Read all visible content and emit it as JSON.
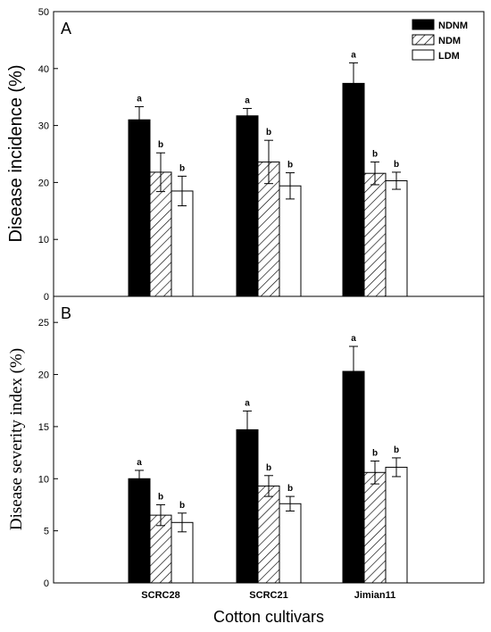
{
  "chart_data": [
    {
      "type": "bar",
      "panel_label": "A",
      "ylabel": "Disease incidence (%)",
      "ylim": [
        0,
        50
      ],
      "yticks": [
        "0",
        "10",
        "20",
        "30",
        "40",
        "50"
      ],
      "categories": [
        "SCRC28",
        "SCRC21",
        "Jimian11"
      ],
      "legend_position": "top-right",
      "series": [
        {
          "name": "NDNM",
          "fill": "solid-black",
          "values": [
            31.0,
            31.7,
            37.4
          ],
          "errors": [
            2.3,
            1.3,
            3.6
          ],
          "letters": [
            "a",
            "a",
            "a"
          ]
        },
        {
          "name": "NDM",
          "fill": "hatched",
          "values": [
            21.8,
            23.6,
            21.6
          ],
          "errors": [
            3.4,
            3.8,
            2.0
          ],
          "letters": [
            "b",
            "b",
            "b"
          ]
        },
        {
          "name": "LDM",
          "fill": "white",
          "values": [
            18.5,
            19.4,
            20.3
          ],
          "errors": [
            2.6,
            2.3,
            1.5
          ],
          "letters": [
            "b",
            "b",
            "b"
          ]
        }
      ]
    },
    {
      "type": "bar",
      "panel_label": "B",
      "ylabel": "Disease severity index (%)",
      "ylim": [
        0,
        27.5
      ],
      "yticks": [
        "0",
        "5",
        "10",
        "15",
        "20",
        "25"
      ],
      "categories": [
        "SCRC28",
        "SCRC21",
        "Jimian11"
      ],
      "series": [
        {
          "name": "NDNM",
          "fill": "solid-black",
          "values": [
            10.0,
            14.7,
            20.3
          ],
          "errors": [
            0.8,
            1.8,
            2.4
          ],
          "letters": [
            "a",
            "a",
            "a"
          ]
        },
        {
          "name": "NDM",
          "fill": "hatched",
          "values": [
            6.5,
            9.3,
            10.6
          ],
          "errors": [
            1.0,
            1.0,
            1.1
          ],
          "letters": [
            "b",
            "b",
            "b"
          ]
        },
        {
          "name": "LDM",
          "fill": "white",
          "values": [
            5.8,
            7.6,
            11.1
          ],
          "errors": [
            0.9,
            0.7,
            0.9
          ],
          "letters": [
            "b",
            "b",
            "b"
          ]
        }
      ]
    }
  ],
  "xlabel": "Cotton cultivars",
  "colors": {
    "axis": "#000000",
    "ndnm_fill": "#000000",
    "other_fill": "#ffffff"
  }
}
